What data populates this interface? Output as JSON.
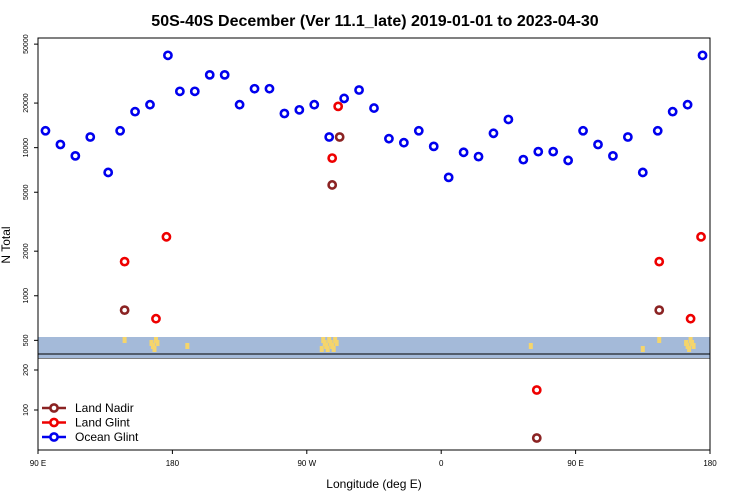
{
  "chart_data": {
    "type": "scatter",
    "title": "50S-40S December (Ver 11.1_late)   2019-01-01 to 2023-04-30",
    "xlabel": "Longitude (deg E)",
    "ylabel": "N Total",
    "x_ticks": [
      {
        "value": 90,
        "label": "90 E"
      },
      {
        "value": 180,
        "label": "180"
      },
      {
        "value": 270,
        "label": "90 W"
      },
      {
        "value": 360,
        "label": "0"
      },
      {
        "value": 450,
        "label": "90 E"
      },
      {
        "value": 540,
        "label": "180"
      }
    ],
    "xlim": [
      90,
      540
    ],
    "colors": {
      "ocean_glint": "#0000ee",
      "land_glint": "#ee0000",
      "land_nadir": "#8b2323",
      "land_band": "#a4bad9",
      "land_mass": "#f5d56b"
    },
    "upper_panel": {
      "scale": "log",
      "ylim": [
        380,
        55000
      ],
      "y_ticks": [
        500,
        1000,
        2000,
        5000,
        10000,
        20000,
        50000
      ],
      "series": [
        {
          "name": "Ocean Glint",
          "key": "ocean_glint",
          "x": [
            95,
            105,
            115,
            125,
            137,
            145,
            155,
            165,
            177,
            185,
            195,
            205,
            215,
            225,
            235,
            245,
            255,
            265,
            275,
            285,
            295,
            305,
            315,
            325,
            335,
            345,
            355,
            365,
            375,
            385,
            395,
            405,
            415,
            425,
            435,
            445,
            455,
            465,
            475,
            485,
            495,
            505,
            515,
            525,
            535
          ],
          "y": [
            13000,
            10500,
            8800,
            11800,
            6800,
            13000,
            17500,
            19500,
            42000,
            24000,
            24000,
            31000,
            31000,
            19500,
            25000,
            25000,
            17000,
            18000,
            19500,
            11800,
            21500,
            24500,
            18500,
            11500,
            10800,
            13000,
            10200,
            6300,
            9300,
            8700,
            12500,
            15500,
            8300,
            9400,
            9400,
            8200,
            13000,
            10500,
            8800,
            11800,
            6800,
            13000,
            17500,
            19500,
            42000
          ]
        },
        {
          "name": "Land Glint",
          "key": "land_glint",
          "x": [
            148,
            169,
            176,
            287,
            291,
            506,
            527,
            534
          ],
          "y": [
            1700,
            700,
            2500,
            8500,
            19000,
            1700,
            700,
            2500
          ]
        },
        {
          "name": "Land Nadir",
          "key": "land_nadir",
          "x": [
            148,
            287,
            292,
            506
          ],
          "y": [
            800,
            5600,
            11800,
            800
          ]
        }
      ],
      "land_strip_x": [
        148,
        166,
        167,
        168,
        169,
        170,
        190,
        280,
        281,
        282,
        283,
        284,
        285,
        286,
        287,
        288,
        289,
        290,
        420,
        495,
        506,
        524,
        525,
        526,
        527,
        528,
        529
      ]
    },
    "lower_panel": {
      "ylim": [
        0,
        230
      ],
      "y_ticks": [
        100,
        200
      ],
      "series": [
        {
          "name": "Land Glint",
          "key": "land_glint",
          "x": [
            424
          ],
          "y": [
            150
          ]
        },
        {
          "name": "Land Nadir",
          "key": "land_nadir",
          "x": [
            424
          ],
          "y": [
            30
          ]
        }
      ]
    },
    "legend": {
      "position": "bottom-left",
      "entries": [
        {
          "label": "Land Nadir",
          "key": "land_nadir"
        },
        {
          "label": "Land Glint",
          "key": "land_glint"
        },
        {
          "label": "Ocean Glint",
          "key": "ocean_glint"
        }
      ]
    }
  }
}
